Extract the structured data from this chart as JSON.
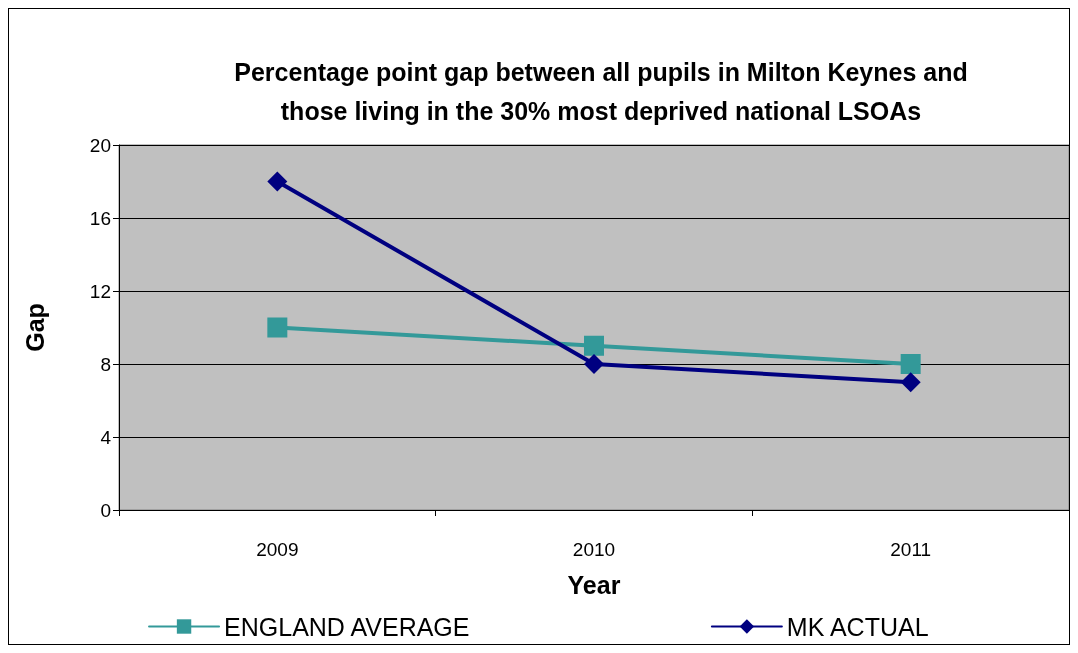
{
  "chart_data": {
    "type": "line",
    "title": "Percentage point gap between all pupils in Milton Keynes and\nthose living in the 30% most deprived national LSOAs",
    "xlabel": "Year",
    "ylabel": "Gap",
    "categories": [
      "2009",
      "2010",
      "2011"
    ],
    "series": [
      {
        "name": "ENGLAND AVERAGE",
        "color": "#339999",
        "marker": "square",
        "values": [
          10,
          9,
          8
        ]
      },
      {
        "name": "MK ACTUAL",
        "color": "#000080",
        "marker": "diamond",
        "values": [
          18,
          8,
          7
        ]
      }
    ],
    "ylim": [
      0,
      20
    ],
    "yticks": [
      0,
      4,
      8,
      12,
      16,
      20
    ],
    "grid": "y",
    "legend": "bottom",
    "line_style": "solid"
  }
}
